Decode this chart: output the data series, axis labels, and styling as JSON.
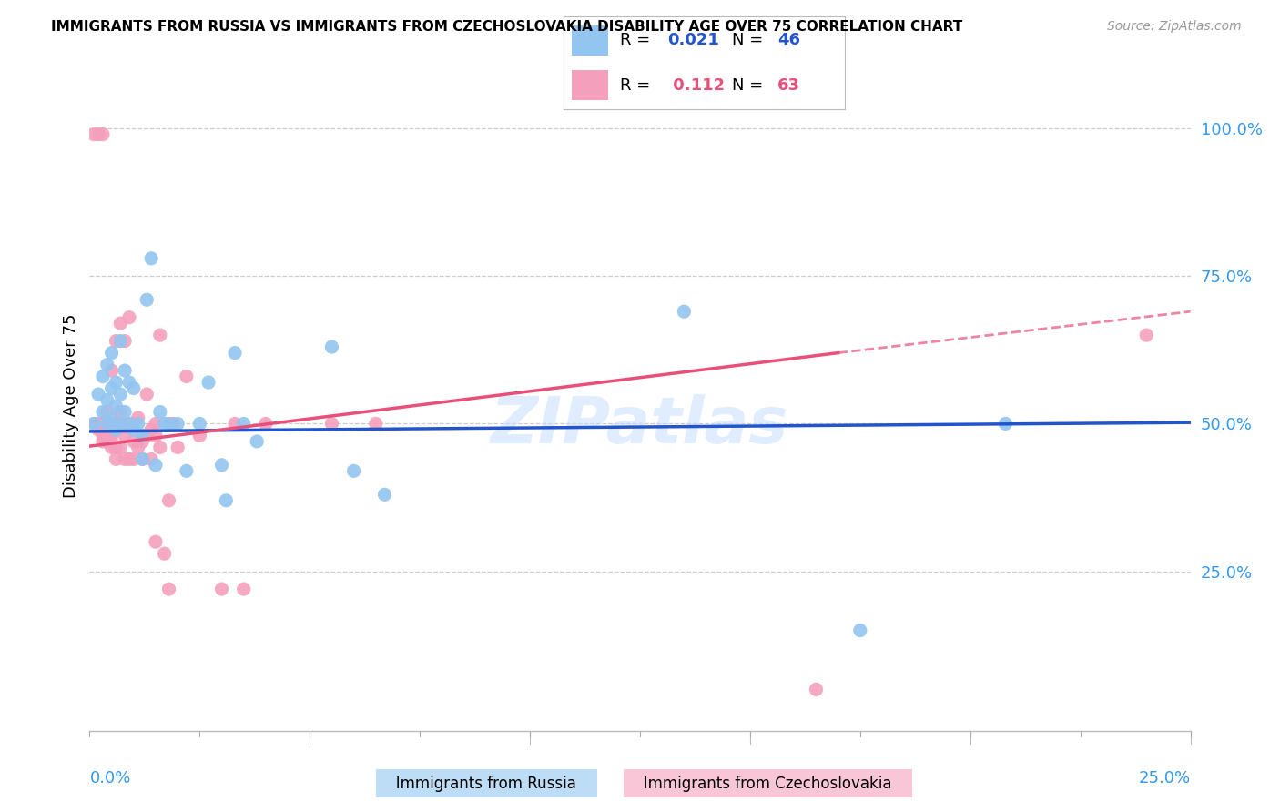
{
  "title": "IMMIGRANTS FROM RUSSIA VS IMMIGRANTS FROM CZECHOSLOVAKIA DISABILITY AGE OVER 75 CORRELATION CHART",
  "source": "Source: ZipAtlas.com",
  "ylabel": "Disability Age Over 75",
  "ytick_labels": [
    "100.0%",
    "75.0%",
    "50.0%",
    "25.0%"
  ],
  "ytick_values": [
    1.0,
    0.75,
    0.5,
    0.25
  ],
  "xlim": [
    0.0,
    0.25
  ],
  "ylim": [
    -0.02,
    1.08
  ],
  "russia_R": 0.021,
  "russia_N": 46,
  "czech_R": 0.112,
  "czech_N": 63,
  "russia_color": "#92C5F0",
  "czech_color": "#F4A0BC",
  "russia_line_color": "#2255CC",
  "czech_line_color": "#E8507A",
  "watermark": "ZIPatlas",
  "russia_x": [
    0.001,
    0.002,
    0.003,
    0.003,
    0.004,
    0.004,
    0.004,
    0.005,
    0.005,
    0.005,
    0.006,
    0.006,
    0.006,
    0.007,
    0.007,
    0.007,
    0.008,
    0.008,
    0.009,
    0.009,
    0.01,
    0.01,
    0.011,
    0.012,
    0.012,
    0.013,
    0.014,
    0.015,
    0.016,
    0.017,
    0.018,
    0.02,
    0.022,
    0.025,
    0.027,
    0.03,
    0.031,
    0.033,
    0.035,
    0.038,
    0.055,
    0.06,
    0.067,
    0.135,
    0.175,
    0.208
  ],
  "russia_y": [
    0.5,
    0.55,
    0.52,
    0.58,
    0.5,
    0.54,
    0.6,
    0.51,
    0.56,
    0.62,
    0.49,
    0.53,
    0.57,
    0.5,
    0.55,
    0.64,
    0.52,
    0.59,
    0.5,
    0.57,
    0.49,
    0.56,
    0.5,
    0.44,
    0.48,
    0.71,
    0.78,
    0.43,
    0.52,
    0.5,
    0.5,
    0.5,
    0.42,
    0.5,
    0.57,
    0.43,
    0.37,
    0.62,
    0.5,
    0.47,
    0.63,
    0.42,
    0.38,
    0.69,
    0.15,
    0.5
  ],
  "czech_x": [
    0.001,
    0.001,
    0.002,
    0.002,
    0.002,
    0.003,
    0.003,
    0.003,
    0.003,
    0.004,
    0.004,
    0.004,
    0.004,
    0.005,
    0.005,
    0.005,
    0.005,
    0.005,
    0.006,
    0.006,
    0.006,
    0.006,
    0.007,
    0.007,
    0.007,
    0.007,
    0.008,
    0.008,
    0.008,
    0.009,
    0.009,
    0.009,
    0.01,
    0.01,
    0.01,
    0.011,
    0.011,
    0.012,
    0.012,
    0.013,
    0.013,
    0.014,
    0.014,
    0.015,
    0.015,
    0.015,
    0.016,
    0.016,
    0.017,
    0.018,
    0.018,
    0.019,
    0.02,
    0.022,
    0.025,
    0.03,
    0.033,
    0.035,
    0.04,
    0.055,
    0.065,
    0.165,
    0.24
  ],
  "czech_y": [
    0.5,
    0.99,
    0.49,
    0.5,
    0.99,
    0.47,
    0.48,
    0.5,
    0.99,
    0.47,
    0.48,
    0.5,
    0.52,
    0.46,
    0.47,
    0.48,
    0.5,
    0.59,
    0.44,
    0.46,
    0.5,
    0.64,
    0.46,
    0.5,
    0.52,
    0.67,
    0.44,
    0.48,
    0.64,
    0.44,
    0.5,
    0.68,
    0.44,
    0.47,
    0.5,
    0.46,
    0.51,
    0.44,
    0.47,
    0.48,
    0.55,
    0.44,
    0.49,
    0.48,
    0.3,
    0.5,
    0.46,
    0.65,
    0.28,
    0.22,
    0.37,
    0.5,
    0.46,
    0.58,
    0.48,
    0.22,
    0.5,
    0.22,
    0.5,
    0.5,
    0.5,
    0.05,
    0.65
  ],
  "russia_line_x0": 0.0,
  "russia_line_y0": 0.487,
  "russia_line_x1": 0.25,
  "russia_line_y1": 0.502,
  "czech_line_x0": 0.0,
  "czech_line_y0": 0.462,
  "czech_line_solid_x1": 0.17,
  "czech_line_solid_y1": 0.62,
  "czech_line_dashed_x1": 0.25,
  "czech_line_dashed_y1": 0.69
}
